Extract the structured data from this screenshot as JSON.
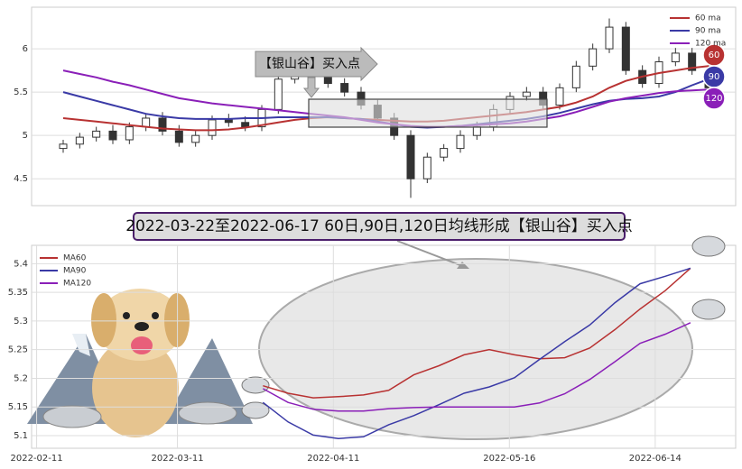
{
  "chart_data": [
    {
      "type": "candlestick",
      "annotation": "【银山谷】买入点",
      "ylim": [
        4.19,
        6.48
      ],
      "yticks": [
        4.5,
        5.0,
        5.5,
        6.0
      ],
      "grid": true,
      "open": [
        4.85,
        4.9,
        4.98,
        5.05,
        4.95,
        5.1,
        5.2,
        5.05,
        4.92,
        5.0,
        5.18,
        5.15,
        5.1,
        5.3,
        5.65,
        5.72,
        5.7,
        5.6,
        5.5,
        5.35,
        5.2,
        5.0,
        4.5,
        4.75,
        4.85,
        5.0,
        5.1,
        5.3,
        5.45,
        5.5,
        5.35,
        5.55,
        5.8,
        6.0,
        6.25,
        5.75,
        5.6,
        5.85,
        5.95,
        5.75
      ],
      "high": [
        4.95,
        5.03,
        5.1,
        5.12,
        5.15,
        5.25,
        5.27,
        5.12,
        5.05,
        5.23,
        5.25,
        5.22,
        5.35,
        5.7,
        5.78,
        5.78,
        5.76,
        5.66,
        5.56,
        5.41,
        5.26,
        5.06,
        4.8,
        4.9,
        5.06,
        5.16,
        5.36,
        5.5,
        5.56,
        5.56,
        5.6,
        5.86,
        6.06,
        6.35,
        6.31,
        5.81,
        5.91,
        6.01,
        6.01,
        5.81
      ],
      "low": [
        4.8,
        4.85,
        4.93,
        4.9,
        4.9,
        5.05,
        5.0,
        4.87,
        4.87,
        4.95,
        5.1,
        5.05,
        5.05,
        5.25,
        5.6,
        5.65,
        5.55,
        5.45,
        5.3,
        5.15,
        4.95,
        4.28,
        4.45,
        4.7,
        4.8,
        4.95,
        5.05,
        5.25,
        5.4,
        5.3,
        5.3,
        5.5,
        5.75,
        5.95,
        5.7,
        5.55,
        5.55,
        5.8,
        5.7,
        5.5
      ],
      "close": [
        4.9,
        4.98,
        5.05,
        4.95,
        5.1,
        5.2,
        5.05,
        4.92,
        5.0,
        5.18,
        5.15,
        5.1,
        5.3,
        5.65,
        5.72,
        5.7,
        5.6,
        5.5,
        5.35,
        5.2,
        5.0,
        4.5,
        4.75,
        4.85,
        5.0,
        5.1,
        5.3,
        5.45,
        5.5,
        5.35,
        5.55,
        5.8,
        6.0,
        6.25,
        5.75,
        5.6,
        5.85,
        5.95,
        5.75,
        5.55
      ],
      "series": [
        {
          "name": "60 ma",
          "badge": "60",
          "color": "#b83232",
          "values": [
            5.2,
            5.18,
            5.16,
            5.14,
            5.12,
            5.1,
            5.08,
            5.07,
            5.06,
            5.06,
            5.07,
            5.09,
            5.12,
            5.15,
            5.18,
            5.2,
            5.21,
            5.2,
            5.19,
            5.18,
            5.17,
            5.16,
            5.16,
            5.17,
            5.19,
            5.21,
            5.23,
            5.25,
            5.27,
            5.3,
            5.33,
            5.38,
            5.45,
            5.55,
            5.63,
            5.68,
            5.72,
            5.75,
            5.78,
            5.8
          ]
        },
        {
          "name": "90 ma",
          "badge": "90",
          "color": "#3a3aa6",
          "values": [
            5.5,
            5.45,
            5.4,
            5.35,
            5.3,
            5.25,
            5.22,
            5.2,
            5.19,
            5.19,
            5.19,
            5.2,
            5.2,
            5.21,
            5.21,
            5.21,
            5.21,
            5.2,
            5.19,
            5.16,
            5.13,
            5.1,
            5.09,
            5.1,
            5.11,
            5.13,
            5.15,
            5.17,
            5.19,
            5.22,
            5.26,
            5.31,
            5.36,
            5.4,
            5.42,
            5.43,
            5.45,
            5.5,
            5.58,
            5.65
          ]
        },
        {
          "name": "120 ma",
          "badge": "120",
          "color": "#8a1fb8",
          "values": [
            5.75,
            5.71,
            5.67,
            5.62,
            5.58,
            5.53,
            5.48,
            5.43,
            5.4,
            5.37,
            5.35,
            5.33,
            5.31,
            5.29,
            5.27,
            5.25,
            5.23,
            5.21,
            5.18,
            5.15,
            5.13,
            5.11,
            5.1,
            5.1,
            5.11,
            5.12,
            5.13,
            5.14,
            5.16,
            5.19,
            5.22,
            5.27,
            5.33,
            5.39,
            5.43,
            5.46,
            5.49,
            5.51,
            5.52,
            5.53
          ]
        }
      ]
    },
    {
      "type": "line",
      "title": "2022-03-22至2022-06-17 60日,90日,120日均线形成【银山谷】买入点",
      "x": [
        "2022-03-28",
        "2022-04-02",
        "2022-04-07",
        "2022-04-12",
        "2022-04-17",
        "2022-04-22",
        "2022-04-27",
        "2022-05-02",
        "2022-05-07",
        "2022-05-12",
        "2022-05-17",
        "2022-05-22",
        "2022-05-27",
        "2022-06-01",
        "2022-06-06",
        "2022-06-11",
        "2022-06-16",
        "2022-06-21"
      ],
      "xlim": [
        "2022-02-10",
        "2022-06-30"
      ],
      "xticks": [
        "2022-02-11",
        "2022-03-11",
        "2022-04-11",
        "2022-05-16",
        "2022-06-14"
      ],
      "ylim": [
        5.078,
        5.432
      ],
      "yticks": [
        5.1,
        5.15,
        5.2,
        5.25,
        5.3,
        5.35,
        5.4
      ],
      "grid": true,
      "series": [
        {
          "name": "MA60",
          "color": "#b83232",
          "values": [
            5.187,
            5.174,
            5.166,
            5.168,
            5.171,
            5.179,
            5.206,
            5.222,
            5.241,
            5.25,
            5.241,
            5.234,
            5.236,
            5.253,
            5.285,
            5.321,
            5.353,
            5.392
          ]
        },
        {
          "name": "MA90",
          "color": "#3a3aa6",
          "values": [
            5.158,
            5.124,
            5.101,
            5.095,
            5.098,
            5.119,
            5.135,
            5.154,
            5.174,
            5.185,
            5.201,
            5.233,
            5.264,
            5.293,
            5.332,
            5.365,
            5.378,
            5.392
          ]
        },
        {
          "name": "MA120",
          "color": "#8a1fb8",
          "values": [
            5.182,
            5.158,
            5.146,
            5.143,
            5.143,
            5.147,
            5.149,
            5.15,
            5.15,
            5.15,
            5.15,
            5.157,
            5.173,
            5.198,
            5.229,
            5.261,
            5.277,
            5.297
          ]
        }
      ]
    }
  ]
}
